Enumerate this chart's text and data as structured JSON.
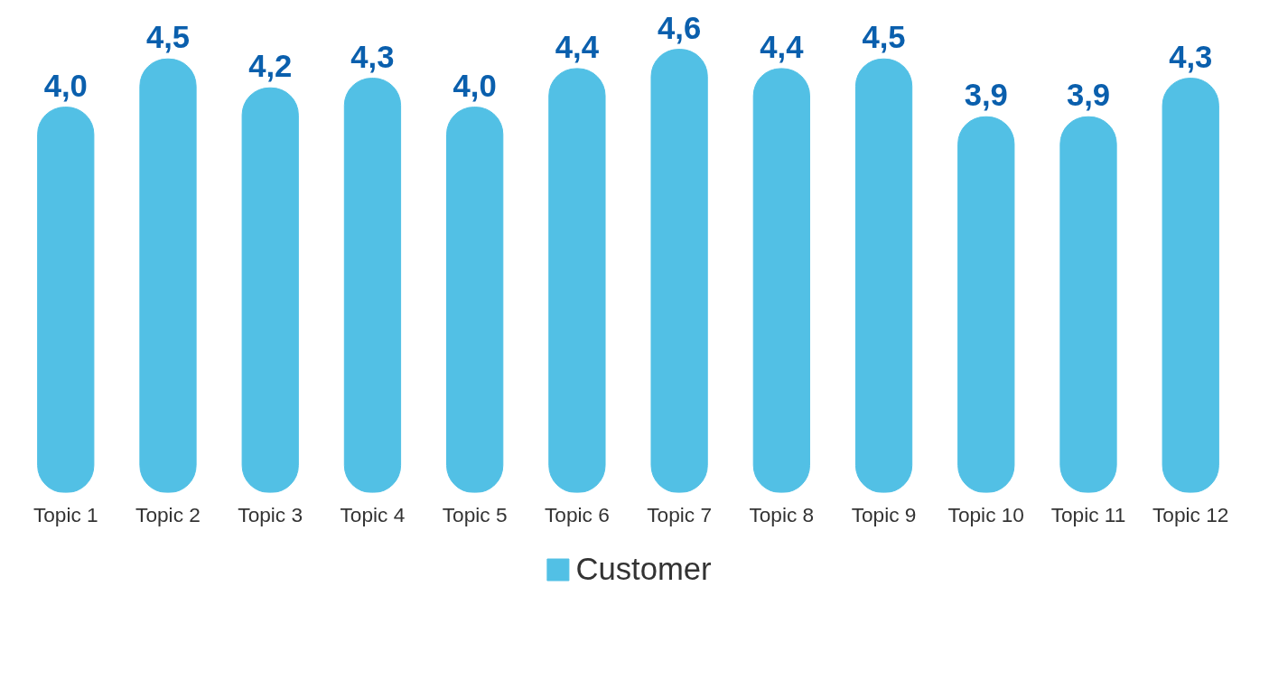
{
  "chart_data": {
    "type": "bar",
    "categories": [
      "Topic 1",
      "Topic 2",
      "Topic 3",
      "Topic 4",
      "Topic 5",
      "Topic 6",
      "Topic 7",
      "Topic 8",
      "Topic 9",
      "Topic 10",
      "Topic 11",
      "Topic 12"
    ],
    "series": [
      {
        "name": "Customer",
        "color": "#52c0e5",
        "values": [
          4.0,
          4.5,
          4.2,
          4.3,
          4.0,
          4.4,
          4.6,
          4.4,
          4.5,
          3.9,
          3.9,
          4.3
        ],
        "value_labels": [
          "4,0",
          "4,5",
          "4,2",
          "4,3",
          "4,0",
          "4,4",
          "4,6",
          "4,4",
          "4,5",
          "3,9",
          "3,9",
          "4,3"
        ]
      }
    ],
    "tick_labels": "x",
    "grid": false,
    "legend": "bottom"
  }
}
